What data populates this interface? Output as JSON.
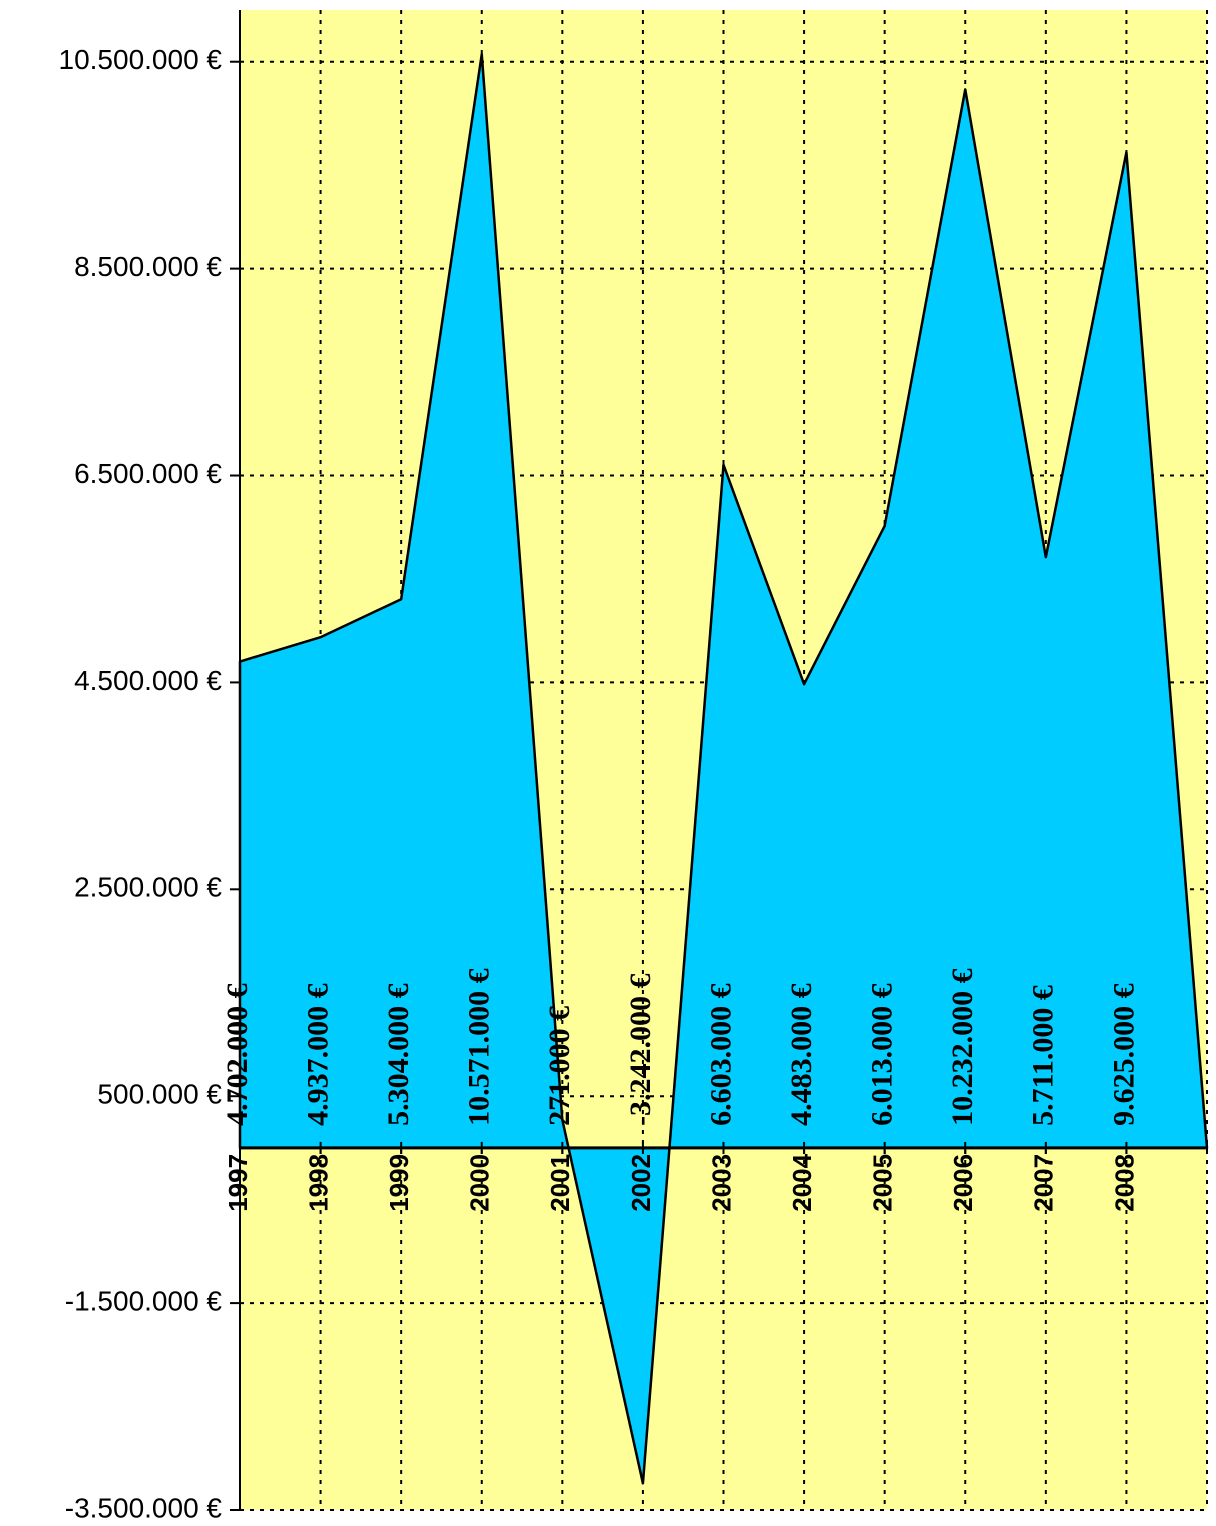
{
  "chart_data": {
    "type": "area",
    "categories": [
      "1997",
      "1998",
      "1999",
      "2000",
      "2001",
      "2002",
      "2003",
      "2004",
      "2005",
      "2006",
      "2007",
      "2008",
      null
    ],
    "series": [
      {
        "color": "#00ccff",
        "values": [
          4702000,
          4937000,
          5304000,
          10571000,
          271000,
          -3242000,
          6603000,
          4483000,
          6013000,
          10232000,
          5711000,
          9625000,
          null
        ],
        "value_labels": [
          "4.702.000 €",
          "4.937.000 €",
          "5.304.000 €",
          "10.571.000 €",
          "271.000 €",
          "-3.242.000 €",
          "6.603.000 €",
          "4.483.000 €",
          "6.013.000 €",
          "10.232.000 €",
          "5.711.000 €",
          "9.625.000 €",
          null
        ]
      }
    ],
    "ylim": [
      -3500000,
      11000000
    ],
    "yticks": [
      {
        "value": -3500000,
        "label": "-3.500.000 €"
      },
      {
        "value": -1500000,
        "label": "-1.500.000 €"
      },
      {
        "value": 500000,
        "label": "500.000 €"
      },
      {
        "value": 2500000,
        "label": "2.500.000 €"
      },
      {
        "value": 4500000,
        "label": "4.500.000 €"
      },
      {
        "value": 6500000,
        "label": "6.500.000 €"
      },
      {
        "value": 8500000,
        "label": "8.500.000 €"
      },
      {
        "value": 10500000,
        "label": "10.500.000 €"
      }
    ],
    "grid": true,
    "background": "#ffff99"
  }
}
